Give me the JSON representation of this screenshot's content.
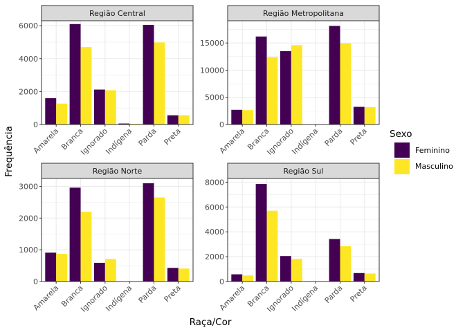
{
  "chart_data": {
    "type": "bar",
    "xlabel": "Raça/Cor",
    "ylabel": "Frequência",
    "legend": {
      "title": "Sexo",
      "position": "right",
      "entries": [
        "Feminino",
        "Masculino"
      ]
    },
    "colors": {
      "Feminino": "#440154",
      "Masculino": "#FDE725",
      "strip_fill": "#D9D9D9",
      "grid": "#EBEBEB"
    },
    "grid": true,
    "categories": [
      "Amarela",
      "Branca",
      "Ignorado",
      "Indígena",
      "Parda",
      "Preta"
    ],
    "panels": [
      {
        "title": "Região Central",
        "ylim": [
          0,
          6300
        ],
        "yticks": [
          0,
          2000,
          4000,
          6000
        ],
        "series": [
          {
            "name": "Feminino",
            "values": [
              1600,
              6100,
              2120,
              60,
              6050,
              560
            ]
          },
          {
            "name": "Masculino",
            "values": [
              1270,
              4700,
              2080,
              40,
              4980,
              560
            ]
          }
        ]
      },
      {
        "title": "Região Metropolitana",
        "ylim": [
          0,
          19100
        ],
        "yticks": [
          0,
          5000,
          10000,
          15000
        ],
        "series": [
          {
            "name": "Feminino",
            "values": [
              2700,
              16200,
              13500,
              0,
              18150,
              3250
            ]
          },
          {
            "name": "Masculino",
            "values": [
              2650,
              12400,
              14600,
              0,
              14950,
              3200
            ]
          }
        ]
      },
      {
        "title": "Região Norte",
        "ylim": [
          0,
          3250
        ],
        "yticks": [
          0,
          1000,
          2000,
          3000
        ],
        "series": [
          {
            "name": "Feminino",
            "values": [
              910,
              2960,
              590,
              0,
              3100,
              430
            ]
          },
          {
            "name": "Masculino",
            "values": [
              870,
              2200,
              710,
              0,
              2650,
              410
            ]
          }
        ]
      },
      {
        "title": "Região Sul",
        "ylim": [
          0,
          8300
        ],
        "yticks": [
          0,
          2000,
          4000,
          6000,
          8000
        ],
        "series": [
          {
            "name": "Feminino",
            "values": [
              580,
              7850,
              2050,
              0,
              3420,
              680
            ]
          },
          {
            "name": "Masculino",
            "values": [
              490,
              5700,
              1820,
              0,
              2850,
              640
            ]
          }
        ]
      }
    ]
  }
}
